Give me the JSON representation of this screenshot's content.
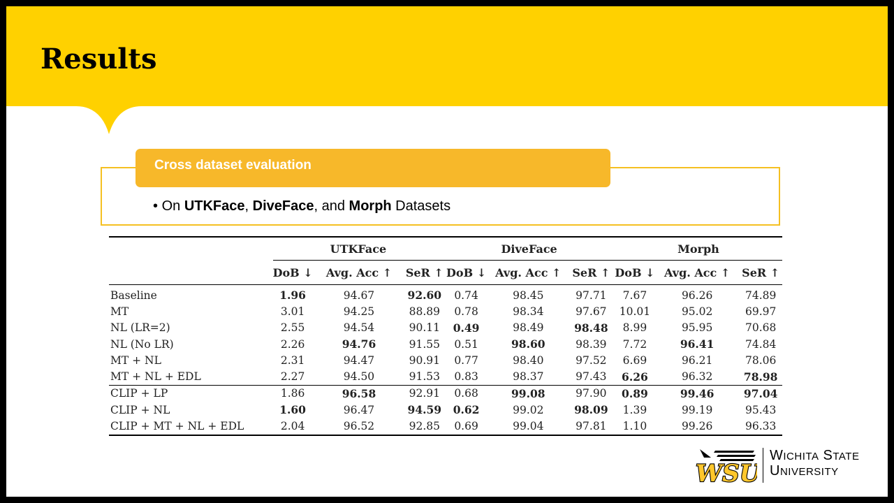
{
  "slide": {
    "title": "Results"
  },
  "box": {
    "header": "Cross dataset evaluation",
    "bullet": {
      "prefix": "On ",
      "d1": "UTKFace",
      "sep1": ", ",
      "d2": "DiveFace",
      "sep2": ", and ",
      "d3": "Morph",
      "suffix": " Datasets"
    }
  },
  "table": {
    "groups": [
      "UTKFace",
      "DiveFace",
      "Morph"
    ],
    "metrics": [
      "DoB ↓",
      "Avg. Acc ↑",
      "SeR ↑",
      "DoB ↓",
      "Avg. Acc ↑",
      "SeR ↑",
      "DoB ↓",
      "Avg. Acc ↑",
      "SeR ↑"
    ],
    "rows": [
      {
        "method": "Baseline",
        "values": [
          "1.96",
          "94.67",
          "92.60",
          "0.74",
          "98.45",
          "97.71",
          "7.67",
          "96.26",
          "74.89"
        ],
        "bold": [
          true,
          false,
          true,
          false,
          false,
          false,
          false,
          false,
          false
        ]
      },
      {
        "method": "MT",
        "values": [
          "3.01",
          "94.25",
          "88.89",
          "0.78",
          "98.34",
          "97.67",
          "10.01",
          "95.02",
          "69.97"
        ],
        "bold": [
          false,
          false,
          false,
          false,
          false,
          false,
          false,
          false,
          false
        ]
      },
      {
        "method": "NL (LR=2)",
        "values": [
          "2.55",
          "94.54",
          "90.11",
          "0.49",
          "98.49",
          "98.48",
          "8.99",
          "95.95",
          "70.68"
        ],
        "bold": [
          false,
          false,
          false,
          true,
          false,
          true,
          false,
          false,
          false
        ]
      },
      {
        "method": "NL (No LR)",
        "values": [
          "2.26",
          "94.76",
          "91.55",
          "0.51",
          "98.60",
          "98.39",
          "7.72",
          "96.41",
          "74.84"
        ],
        "bold": [
          false,
          true,
          false,
          false,
          true,
          false,
          false,
          true,
          false
        ]
      },
      {
        "method": "MT + NL",
        "values": [
          "2.31",
          "94.47",
          "90.91",
          "0.77",
          "98.40",
          "97.52",
          "6.69",
          "96.21",
          "78.06"
        ],
        "bold": [
          false,
          false,
          false,
          false,
          false,
          false,
          false,
          false,
          false
        ]
      },
      {
        "method": "MT + NL + EDL",
        "values": [
          "2.27",
          "94.50",
          "91.53",
          "0.83",
          "98.37",
          "97.43",
          "6.26",
          "96.32",
          "78.98"
        ],
        "bold": [
          false,
          false,
          false,
          false,
          false,
          false,
          true,
          false,
          true
        ]
      },
      {
        "method": "CLIP + LP",
        "values": [
          "1.86",
          "96.58",
          "92.91",
          "0.68",
          "99.08",
          "97.90",
          "0.89",
          "99.46",
          "97.04"
        ],
        "bold": [
          false,
          true,
          false,
          false,
          true,
          false,
          true,
          true,
          true
        ]
      },
      {
        "method": "CLIP + NL",
        "values": [
          "1.60",
          "96.47",
          "94.59",
          "0.62",
          "99.02",
          "98.09",
          "1.39",
          "99.19",
          "95.43"
        ],
        "bold": [
          true,
          false,
          true,
          true,
          false,
          true,
          false,
          false,
          false
        ]
      },
      {
        "method": "CLIP + MT + NL + EDL",
        "values": [
          "2.04",
          "96.52",
          "92.85",
          "0.69",
          "99.04",
          "97.81",
          "1.10",
          "99.26",
          "96.33"
        ],
        "bold": [
          false,
          false,
          false,
          false,
          false,
          false,
          false,
          false,
          false
        ]
      }
    ]
  },
  "logo": {
    "mark": "WSU",
    "line1": "Wichita State",
    "line2": "University"
  },
  "colors": {
    "banner": "#ffd100",
    "box_header": "#f7b82a",
    "box_border": "#f5c022",
    "frame": "#000000"
  }
}
